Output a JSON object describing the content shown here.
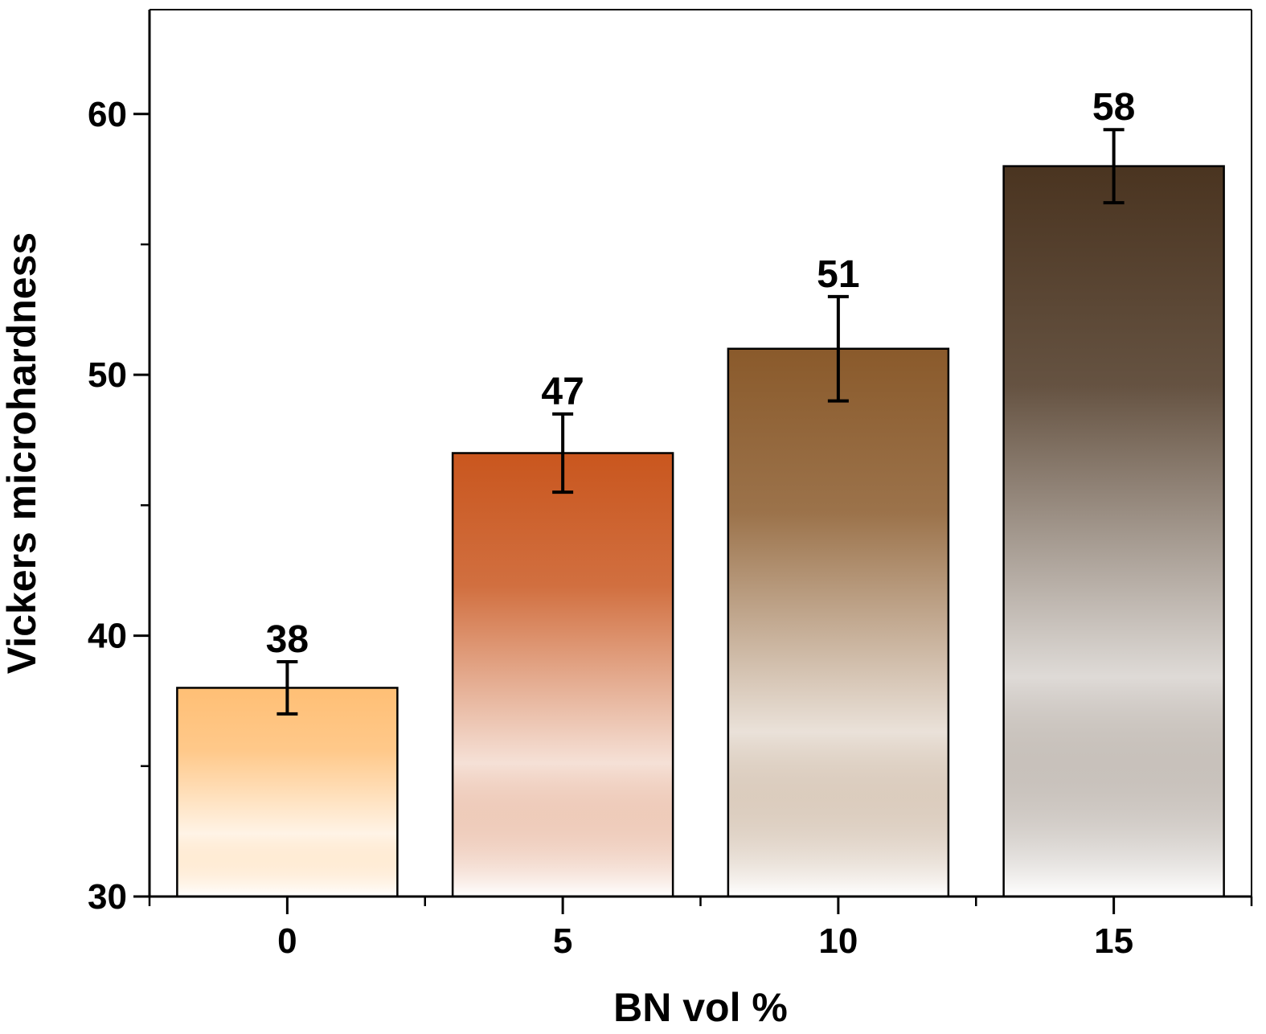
{
  "chart_data": {
    "type": "bar",
    "title": "",
    "xlabel": "BN vol %",
    "ylabel": "Vickers microhardness",
    "categories": [
      "0",
      "5",
      "10",
      "15"
    ],
    "series": [
      {
        "values": [
          38,
          47,
          51,
          58
        ],
        "errors": [
          1,
          1.5,
          2,
          1.4
        ]
      }
    ],
    "data_labels": [
      "38",
      "47",
      "51",
      "58"
    ],
    "ylim": [
      30,
      64
    ],
    "y_major_ticks": [
      30,
      40,
      50,
      60
    ],
    "y_tick_labels": [
      "30",
      "40",
      "50",
      "60"
    ],
    "y_minor_ticks": [
      35,
      45,
      55
    ],
    "x_tick_labels": [
      "0",
      "5",
      "10",
      "15"
    ],
    "grid": false,
    "legend": "none",
    "bar_colors_top": [
      "#ffbf75",
      "#c9561e",
      "#8a5a2b",
      "#4a3420"
    ]
  }
}
